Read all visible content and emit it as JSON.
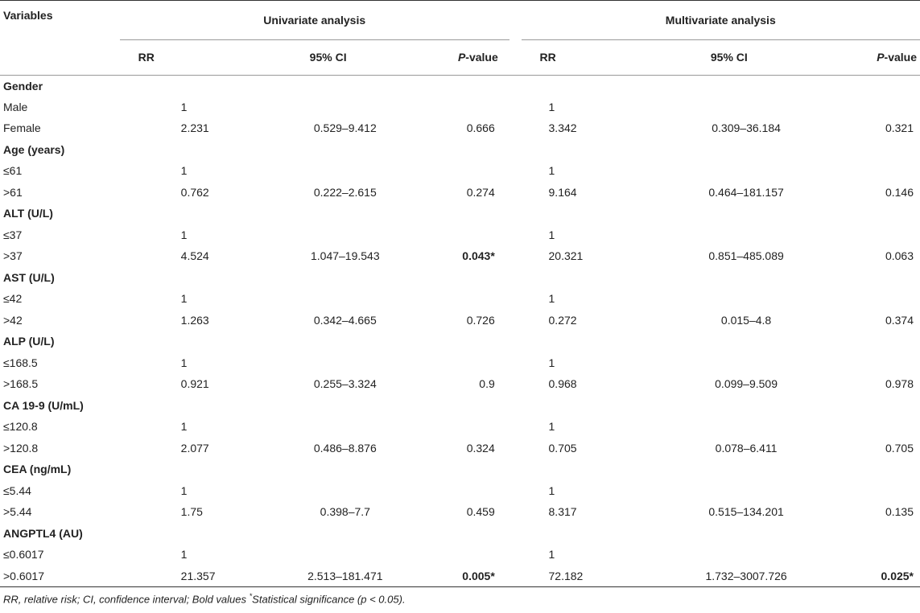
{
  "header": {
    "variables": "Variables",
    "univariate": "Univariate analysis",
    "multivariate": "Multivariate analysis",
    "rr": "RR",
    "ci": "95% CI",
    "p_italic": "P",
    "p_rest": "-value"
  },
  "rows": [
    {
      "type": "section",
      "label": "Gender"
    },
    {
      "type": "data",
      "label": "Male",
      "u_rr": "1",
      "u_ci": "",
      "u_p": "",
      "u_bold": false,
      "m_rr": "1",
      "m_ci": "",
      "m_p": "",
      "m_bold": false
    },
    {
      "type": "data",
      "label": "Female",
      "u_rr": "2.231",
      "u_ci": "0.529–9.412",
      "u_p": "0.666",
      "u_bold": false,
      "m_rr": "3.342",
      "m_ci": "0.309–36.184",
      "m_p": "0.321",
      "m_bold": false
    },
    {
      "type": "section",
      "label": "Age (years)"
    },
    {
      "type": "data",
      "label": "≤61",
      "u_rr": "1",
      "u_ci": "",
      "u_p": "",
      "u_bold": false,
      "m_rr": "1",
      "m_ci": "",
      "m_p": "",
      "m_bold": false
    },
    {
      "type": "data",
      "label": ">61",
      "u_rr": "0.762",
      "u_ci": "0.222–2.615",
      "u_p": "0.274",
      "u_bold": false,
      "m_rr": "9.164",
      "m_ci": "0.464–181.157",
      "m_p": "0.146",
      "m_bold": false
    },
    {
      "type": "section",
      "label": "ALT (U/L)"
    },
    {
      "type": "data",
      "label": "≤37",
      "u_rr": "1",
      "u_ci": "",
      "u_p": "",
      "u_bold": false,
      "m_rr": "1",
      "m_ci": "",
      "m_p": "",
      "m_bold": false
    },
    {
      "type": "data",
      "label": ">37",
      "u_rr": "4.524",
      "u_ci": "1.047–19.543",
      "u_p": "0.043*",
      "u_bold": true,
      "m_rr": "20.321",
      "m_ci": "0.851–485.089",
      "m_p": "0.063",
      "m_bold": false
    },
    {
      "type": "section",
      "label": "AST (U/L)"
    },
    {
      "type": "data",
      "label": "≤42",
      "u_rr": "1",
      "u_ci": "",
      "u_p": "",
      "u_bold": false,
      "m_rr": "1",
      "m_ci": "",
      "m_p": "",
      "m_bold": false
    },
    {
      "type": "data",
      "label": ">42",
      "u_rr": "1.263",
      "u_ci": "0.342–4.665",
      "u_p": "0.726",
      "u_bold": false,
      "m_rr": "0.272",
      "m_ci": "0.015–4.8",
      "m_p": "0.374",
      "m_bold": false
    },
    {
      "type": "section",
      "label": "ALP (U/L)"
    },
    {
      "type": "data",
      "label": "≤168.5",
      "u_rr": "1",
      "u_ci": "",
      "u_p": "",
      "u_bold": false,
      "m_rr": "1",
      "m_ci": "",
      "m_p": "",
      "m_bold": false
    },
    {
      "type": "data",
      "label": ">168.5",
      "u_rr": "0.921",
      "u_ci": "0.255–3.324",
      "u_p": "0.9",
      "u_bold": false,
      "m_rr": "0.968",
      "m_ci": "0.099–9.509",
      "m_p": "0.978",
      "m_bold": false
    },
    {
      "type": "section",
      "label": "CA 19-9 (U/mL)"
    },
    {
      "type": "data",
      "label": "≤120.8",
      "u_rr": "1",
      "u_ci": "",
      "u_p": "",
      "u_bold": false,
      "m_rr": "1",
      "m_ci": "",
      "m_p": "",
      "m_bold": false
    },
    {
      "type": "data",
      "label": ">120.8",
      "u_rr": "2.077",
      "u_ci": "0.486–8.876",
      "u_p": "0.324",
      "u_bold": false,
      "m_rr": "0.705",
      "m_ci": "0.078–6.411",
      "m_p": "0.705",
      "m_bold": false
    },
    {
      "type": "section",
      "label": "CEA (ng/mL)"
    },
    {
      "type": "data",
      "label": "≤5.44",
      "u_rr": "1",
      "u_ci": "",
      "u_p": "",
      "u_bold": false,
      "m_rr": "1",
      "m_ci": "",
      "m_p": "",
      "m_bold": false
    },
    {
      "type": "data",
      "label": ">5.44",
      "u_rr": "1.75",
      "u_ci": "0.398–7.7",
      "u_p": "0.459",
      "u_bold": false,
      "m_rr": "8.317",
      "m_ci": "0.515–134.201",
      "m_p": "0.135",
      "m_bold": false
    },
    {
      "type": "section",
      "label": "ANGPTL4 (AU)"
    },
    {
      "type": "data",
      "label": "≤0.6017",
      "u_rr": "1",
      "u_ci": "",
      "u_p": "",
      "u_bold": false,
      "m_rr": "1",
      "m_ci": "",
      "m_p": "",
      "m_bold": false
    },
    {
      "type": "data",
      "label": ">0.6017",
      "u_rr": "21.357",
      "u_ci": "2.513–181.471",
      "u_p": "0.005*",
      "u_bold": true,
      "m_rr": "72.182",
      "m_ci": "1.732–3007.726",
      "m_p": "0.025*",
      "m_bold": true
    }
  ],
  "footnote": {
    "part1": "RR, relative risk; CI, confidence interval; Bold values ",
    "star": "*",
    "part2": "Statistical significance (p < 0.05)."
  }
}
